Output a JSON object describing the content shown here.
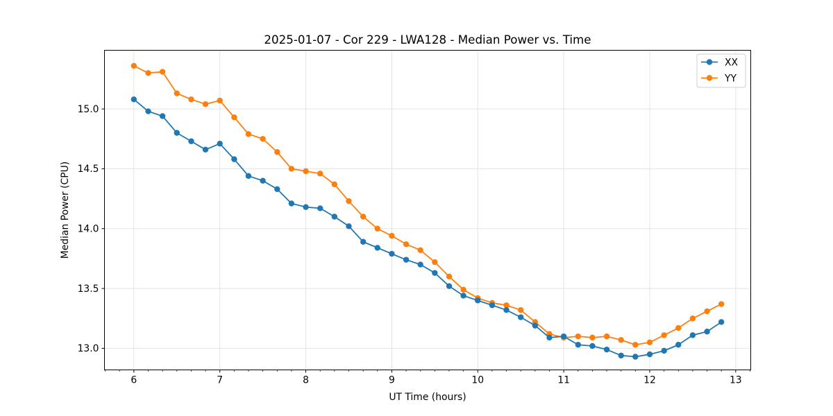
{
  "figure": {
    "background": "#ffffff",
    "spine_color": "#000000",
    "tick_color": "#000000"
  },
  "chart_data": {
    "type": "line",
    "title": "2025-01-07 - Cor 229 - LWA128 - Median Power vs. Time",
    "xlabel": "UT Time (hours)",
    "ylabel": "Median Power (CPU)",
    "xlim": [
      5.658,
      13.175
    ],
    "ylim": [
      12.82,
      15.49
    ],
    "x_ticks": [
      6,
      7,
      8,
      9,
      10,
      11,
      12,
      13
    ],
    "x_tick_labels": [
      "6",
      "7",
      "8",
      "9",
      "10",
      "11",
      "12",
      "13"
    ],
    "x_minor_step": 0.16667,
    "y_ticks": [
      13.0,
      13.5,
      14.0,
      14.5,
      15.0
    ],
    "y_tick_labels": [
      "13.0",
      "13.5",
      "14.0",
      "14.5",
      "15.0"
    ],
    "grid": true,
    "grid_color": "#e3e3e3",
    "marker": "o",
    "legend": {
      "location": "upper right",
      "entries": [
        "XX",
        "YY"
      ]
    },
    "x": [
      6.0,
      6.167,
      6.333,
      6.5,
      6.667,
      6.833,
      7.0,
      7.167,
      7.333,
      7.5,
      7.667,
      7.833,
      8.0,
      8.167,
      8.333,
      8.5,
      8.667,
      8.833,
      9.0,
      9.167,
      9.333,
      9.5,
      9.667,
      9.833,
      10.0,
      10.167,
      10.333,
      10.5,
      10.667,
      10.833,
      11.0,
      11.167,
      11.333,
      11.5,
      11.667,
      11.833,
      12.0,
      12.167,
      12.333,
      12.5,
      12.667,
      12.833
    ],
    "series": [
      {
        "name": "XX",
        "color": "#1f77b4",
        "values": [
          15.08,
          14.98,
          14.94,
          14.8,
          14.73,
          14.66,
          14.71,
          14.58,
          14.44,
          14.4,
          14.33,
          14.21,
          14.18,
          14.17,
          14.1,
          14.02,
          13.89,
          13.84,
          13.79,
          13.74,
          13.7,
          13.63,
          13.52,
          13.44,
          13.4,
          13.36,
          13.32,
          13.26,
          13.19,
          13.09,
          13.1,
          13.03,
          13.02,
          12.99,
          12.94,
          12.93,
          12.95,
          12.98,
          13.03,
          13.11,
          13.14,
          13.22
        ]
      },
      {
        "name": "YY",
        "color": "#ff7f0e",
        "values": [
          15.36,
          15.3,
          15.31,
          15.13,
          15.08,
          15.04,
          15.07,
          14.93,
          14.79,
          14.75,
          14.64,
          14.5,
          14.48,
          14.46,
          14.37,
          14.23,
          14.1,
          14.0,
          13.94,
          13.87,
          13.82,
          13.72,
          13.6,
          13.49,
          13.42,
          13.38,
          13.36,
          13.32,
          13.22,
          13.12,
          13.09,
          13.1,
          13.09,
          13.1,
          13.07,
          13.03,
          13.05,
          13.11,
          13.17,
          13.25,
          13.31,
          13.37
        ]
      }
    ]
  }
}
